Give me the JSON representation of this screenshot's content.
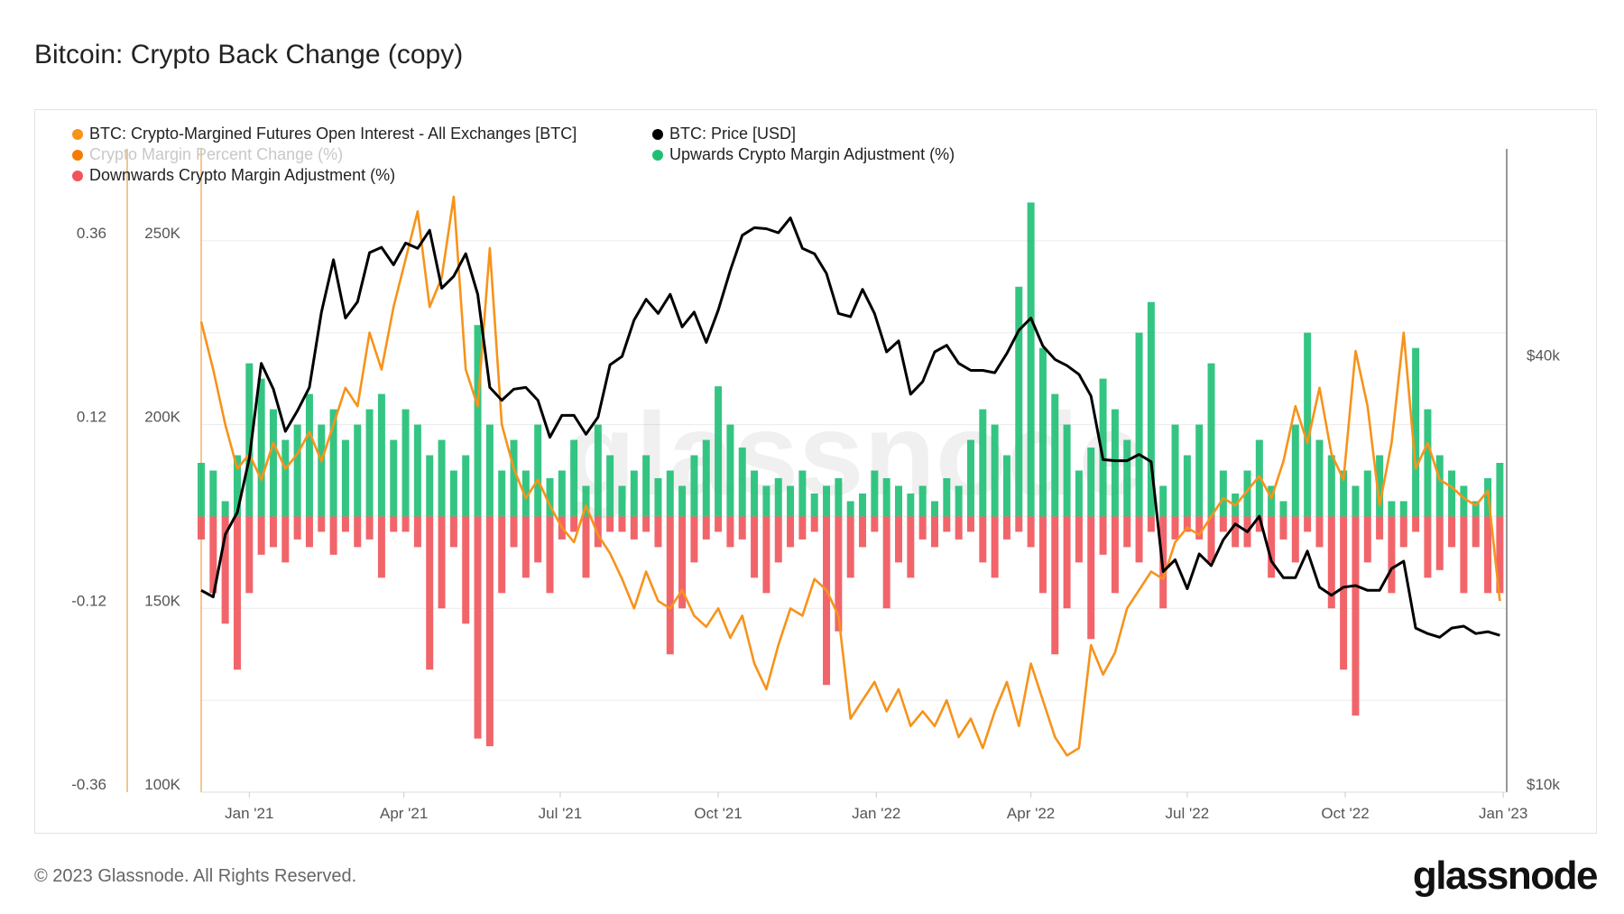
{
  "title": "Bitcoin: Crypto Back Change (copy)",
  "footer": "© 2023 Glassnode. All Rights Reserved.",
  "logo": "glassnode",
  "watermark": "glassnode",
  "legend": [
    {
      "label": "BTC: Crypto-Margined Futures Open Interest - All Exchanges [BTC]",
      "color": "#f7931a"
    },
    {
      "label": "BTC: Price [USD]",
      "color": "#000000"
    },
    {
      "label": "Crypto Margin Percent Change (%)",
      "color": "#f57c00",
      "dimmed": true
    },
    {
      "label": "Upwards Crypto Margin Adjustment (%)",
      "color": "#1fbf75"
    },
    {
      "label": "Downwards Crypto Margin Adjustment (%)",
      "color": "#f0545a"
    }
  ],
  "chart_data": {
    "type": "line",
    "title": "Bitcoin: Crypto Back Change (copy)",
    "x_ticks": [
      "Jan '21",
      "Apr '21",
      "Jul '21",
      "Oct '21",
      "Jan '22",
      "Apr '22",
      "Jul '22",
      "Oct '22",
      "Jan '23"
    ],
    "x_tick_dates": [
      "2021-01-01",
      "2021-04-01",
      "2021-07-01",
      "2021-10-01",
      "2022-01-01",
      "2022-04-01",
      "2022-07-01",
      "2022-10-01",
      "2023-01-01"
    ],
    "xlim": [
      "2020-12-04",
      "2023-01-03"
    ],
    "axes": {
      "pct": {
        "ticks": [
          0.36,
          0.12,
          -0.12,
          -0.36
        ],
        "tick_labels": [
          "0.36",
          "0.12",
          "-0.12",
          "-0.36"
        ],
        "ylim": [
          -0.36,
          0.48
        ]
      },
      "oi": {
        "ticks": [
          250000,
          200000,
          150000,
          100000
        ],
        "tick_labels": [
          "250K",
          "200K",
          "150K",
          "100K"
        ],
        "ylim": [
          100000,
          275000
        ]
      },
      "price": {
        "scale": "log",
        "ticks": [
          40000,
          10000
        ],
        "tick_labels": [
          "$40k",
          "$10k"
        ],
        "ylim": [
          10000,
          80000
        ]
      }
    },
    "grid": true,
    "legend_position": "top-left",
    "x": [
      "2020-12-04",
      "2020-12-11",
      "2020-12-18",
      "2020-12-25",
      "2021-01-01",
      "2021-01-08",
      "2021-01-15",
      "2021-01-22",
      "2021-01-29",
      "2021-02-05",
      "2021-02-12",
      "2021-02-19",
      "2021-02-26",
      "2021-03-05",
      "2021-03-12",
      "2021-03-19",
      "2021-03-26",
      "2021-04-02",
      "2021-04-09",
      "2021-04-16",
      "2021-04-23",
      "2021-04-30",
      "2021-05-07",
      "2021-05-14",
      "2021-05-21",
      "2021-05-28",
      "2021-06-04",
      "2021-06-11",
      "2021-06-18",
      "2021-06-25",
      "2021-07-02",
      "2021-07-09",
      "2021-07-16",
      "2021-07-23",
      "2021-07-30",
      "2021-08-06",
      "2021-08-13",
      "2021-08-20",
      "2021-08-27",
      "2021-09-03",
      "2021-09-10",
      "2021-09-17",
      "2021-09-24",
      "2021-10-01",
      "2021-10-08",
      "2021-10-15",
      "2021-10-22",
      "2021-10-29",
      "2021-11-05",
      "2021-11-12",
      "2021-11-19",
      "2021-11-26",
      "2021-12-03",
      "2021-12-10",
      "2021-12-17",
      "2021-12-24",
      "2021-12-31",
      "2022-01-07",
      "2022-01-14",
      "2022-01-21",
      "2022-01-28",
      "2022-02-04",
      "2022-02-11",
      "2022-02-18",
      "2022-02-25",
      "2022-03-04",
      "2022-03-11",
      "2022-03-18",
      "2022-03-25",
      "2022-04-01",
      "2022-04-08",
      "2022-04-15",
      "2022-04-22",
      "2022-04-29",
      "2022-05-06",
      "2022-05-13",
      "2022-05-20",
      "2022-05-27",
      "2022-06-03",
      "2022-06-10",
      "2022-06-17",
      "2022-06-24",
      "2022-07-01",
      "2022-07-08",
      "2022-07-15",
      "2022-07-22",
      "2022-07-29",
      "2022-08-05",
      "2022-08-12",
      "2022-08-19",
      "2022-08-26",
      "2022-09-02",
      "2022-09-09",
      "2022-09-16",
      "2022-09-23",
      "2022-09-30",
      "2022-10-07",
      "2022-10-14",
      "2022-10-21",
      "2022-10-28",
      "2022-11-04",
      "2022-11-11",
      "2022-11-18",
      "2022-11-25",
      "2022-12-02",
      "2022-12-09",
      "2022-12-16",
      "2022-12-23",
      "2022-12-30"
    ],
    "series": [
      {
        "name": "BTC: Crypto-Margined Futures Open Interest - All Exchanges [BTC]",
        "axis": "oi",
        "type": "line",
        "color": "#f7931a",
        "values": [
          228000,
          215000,
          200000,
          188000,
          192000,
          185000,
          195000,
          188000,
          192000,
          198000,
          190000,
          200000,
          210000,
          205000,
          225000,
          215000,
          232000,
          245000,
          258000,
          232000,
          240000,
          262000,
          215000,
          205000,
          248000,
          200000,
          188000,
          180000,
          185000,
          178000,
          172000,
          168000,
          178000,
          170000,
          165000,
          158000,
          150000,
          160000,
          152000,
          150000,
          155000,
          148000,
          145000,
          150000,
          142000,
          148000,
          135000,
          128000,
          140000,
          150000,
          148000,
          158000,
          155000,
          148000,
          120000,
          125000,
          130000,
          122000,
          128000,
          118000,
          122000,
          118000,
          125000,
          115000,
          120000,
          112000,
          122000,
          130000,
          118000,
          135000,
          125000,
          115000,
          110000,
          112000,
          140000,
          132000,
          138000,
          150000,
          155000,
          160000,
          158000,
          168000,
          172000,
          170000,
          175000,
          180000,
          178000,
          182000,
          186000,
          180000,
          190000,
          205000,
          195000,
          210000,
          192000,
          185000,
          220000,
          205000,
          178000,
          195000,
          225000,
          188000,
          195000,
          185000,
          183000,
          180000,
          178000,
          182000,
          152000
        ]
      },
      {
        "name": "BTC: Price [USD]",
        "axis": "price",
        "type": "line",
        "color": "#000000",
        "values": [
          19200,
          18800,
          23000,
          24700,
          29400,
          40000,
          36800,
          32100,
          34300,
          37000,
          47200,
          55900,
          46300,
          48800,
          57200,
          58200,
          55000,
          59000,
          58000,
          61500,
          51000,
          53000,
          57000,
          50000,
          37000,
          35500,
          36800,
          37000,
          35500,
          31500,
          33800,
          33800,
          31800,
          33600,
          39800,
          40900,
          46000,
          49200,
          47000,
          50000,
          45000,
          47200,
          42800,
          47500,
          54000,
          60500,
          62000,
          61800,
          61000,
          64000,
          58000,
          57000,
          53500,
          47000,
          46500,
          50800,
          47000,
          41500,
          43000,
          36200,
          37700,
          41500,
          42400,
          40000,
          39100,
          39100,
          38800,
          41300,
          44500,
          46300,
          42300,
          40500,
          39700,
          38600,
          36000,
          29300,
          29200,
          29200,
          29800,
          29100,
          20400,
          21200,
          19300,
          21600,
          20800,
          22600,
          23800,
          23200,
          24400,
          21100,
          20000,
          20000,
          21800,
          19400,
          18900,
          19400,
          19500,
          19200,
          19200,
          20600,
          21100,
          17000,
          16700,
          16500,
          17000,
          17100,
          16700,
          16800,
          16600
        ]
      },
      {
        "name": "Upwards Crypto Margin Adjustment (%)",
        "axis": "pct",
        "type": "bar",
        "color": "#1fbf75",
        "values": [
          0.07,
          0.06,
          0.02,
          0.08,
          0.2,
          0.18,
          0.14,
          0.1,
          0.12,
          0.16,
          0.12,
          0.14,
          0.1,
          0.12,
          0.14,
          0.16,
          0.1,
          0.14,
          0.12,
          0.08,
          0.1,
          0.06,
          0.08,
          0.25,
          0.12,
          0.06,
          0.1,
          0.06,
          0.12,
          0.05,
          0.06,
          0.1,
          0.04,
          0.12,
          0.08,
          0.04,
          0.06,
          0.08,
          0.05,
          0.06,
          0.04,
          0.08,
          0.1,
          0.17,
          0.12,
          0.09,
          0.06,
          0.04,
          0.05,
          0.04,
          0.06,
          0.03,
          0.04,
          0.05,
          0.02,
          0.03,
          0.06,
          0.05,
          0.04,
          0.03,
          0.04,
          0.02,
          0.05,
          0.04,
          0.1,
          0.14,
          0.12,
          0.08,
          0.3,
          0.41,
          0.22,
          0.16,
          0.12,
          0.06,
          0.09,
          0.18,
          0.14,
          0.1,
          0.24,
          0.28,
          0.04,
          0.12,
          0.08,
          0.12,
          0.2,
          0.06,
          0.03,
          0.06,
          0.1,
          0.04,
          0.02,
          0.12,
          0.24,
          0.1,
          0.08,
          0.06,
          0.04,
          0.06,
          0.08,
          0.02,
          0.02,
          0.22,
          0.14,
          0.08,
          0.06,
          0.04,
          0.02,
          0.05,
          0.07
        ]
      },
      {
        "name": "Downwards Crypto Margin Adjustment (%)",
        "axis": "pct",
        "type": "bar",
        "color": "#f0545a",
        "values": [
          -0.03,
          -0.1,
          -0.14,
          -0.2,
          -0.1,
          -0.05,
          -0.04,
          -0.06,
          -0.03,
          -0.04,
          -0.02,
          -0.05,
          -0.02,
          -0.04,
          -0.03,
          -0.08,
          -0.02,
          -0.02,
          -0.04,
          -0.2,
          -0.12,
          -0.04,
          -0.14,
          -0.29,
          -0.3,
          -0.1,
          -0.04,
          -0.08,
          -0.06,
          -0.1,
          -0.03,
          -0.02,
          -0.08,
          -0.04,
          -0.02,
          -0.02,
          -0.03,
          -0.02,
          -0.04,
          -0.18,
          -0.12,
          -0.06,
          -0.03,
          -0.02,
          -0.04,
          -0.03,
          -0.08,
          -0.1,
          -0.06,
          -0.04,
          -0.03,
          -0.02,
          -0.22,
          -0.15,
          -0.08,
          -0.04,
          -0.02,
          -0.12,
          -0.06,
          -0.08,
          -0.03,
          -0.04,
          -0.02,
          -0.03,
          -0.02,
          -0.06,
          -0.08,
          -0.03,
          -0.02,
          -0.04,
          -0.1,
          -0.18,
          -0.12,
          -0.06,
          -0.16,
          -0.05,
          -0.1,
          -0.04,
          -0.06,
          -0.02,
          -0.12,
          -0.03,
          -0.02,
          -0.03,
          -0.06,
          -0.02,
          -0.04,
          -0.04,
          -0.02,
          -0.08,
          -0.03,
          -0.06,
          -0.02,
          -0.04,
          -0.12,
          -0.2,
          -0.26,
          -0.06,
          -0.03,
          -0.1,
          -0.04,
          -0.02,
          -0.08,
          -0.07,
          -0.04,
          -0.1,
          -0.04,
          -0.1,
          -0.1
        ]
      }
    ]
  }
}
